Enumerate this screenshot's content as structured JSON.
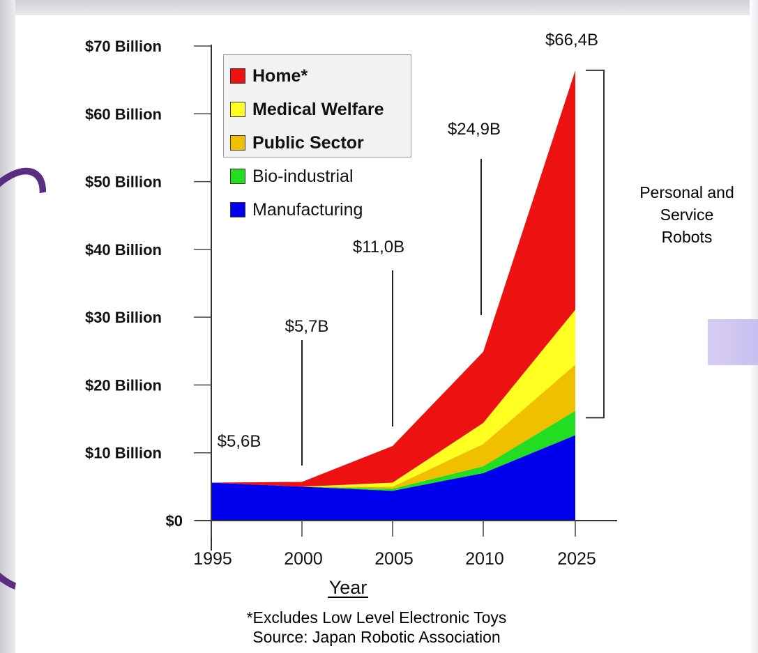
{
  "chart_data": {
    "type": "area",
    "stacked": true,
    "x": [
      "1995",
      "2000",
      "2005",
      "2010",
      "2025"
    ],
    "xlabel": "Year",
    "ylabel": "",
    "ylim": [
      0,
      70
    ],
    "yticks": [
      {
        "value": 0,
        "label": "$0"
      },
      {
        "value": 10,
        "label": "$10 Billion"
      },
      {
        "value": 20,
        "label": "$20 Billion"
      },
      {
        "value": 30,
        "label": "$30 Billion"
      },
      {
        "value": 40,
        "label": "$40 Billion"
      },
      {
        "value": 50,
        "label": "$50 Billion"
      },
      {
        "value": 60,
        "label": "$60 Billion"
      },
      {
        "value": 70,
        "label": "$70 Billion"
      }
    ],
    "series": [
      {
        "name": "Manufacturing",
        "color": "#0000ee",
        "values": [
          5.6,
          5.0,
          4.4,
          7.0,
          12.6
        ]
      },
      {
        "name": "Bio-industrial",
        "color": "#22dd22",
        "values": [
          0.0,
          0.0,
          0.3,
          1.0,
          3.6
        ]
      },
      {
        "name": "Public Sector",
        "color": "#f0c000",
        "values": [
          0.0,
          0.0,
          0.3,
          3.3,
          6.8
        ]
      },
      {
        "name": "Medical Welfare",
        "color": "#ffff22",
        "values": [
          0.0,
          0.0,
          0.6,
          3.1,
          8.1
        ]
      },
      {
        "name": "Home*",
        "color": "#ee1111",
        "values": [
          0.0,
          0.7,
          5.4,
          10.5,
          35.3
        ]
      }
    ],
    "legend": {
      "placement": "top-left",
      "items": [
        {
          "label": "Home*",
          "color": "#ee1111",
          "bold": true,
          "boxed": true
        },
        {
          "label": "Medical Welfare",
          "color": "#ffff22",
          "bold": true,
          "boxed": true
        },
        {
          "label": "Public Sector",
          "color": "#f0c000",
          "bold": true,
          "boxed": true
        },
        {
          "label": "Bio-industrial",
          "color": "#22dd22",
          "bold": false,
          "boxed": false
        },
        {
          "label": "Manufacturing",
          "color": "#0000ee",
          "bold": false,
          "boxed": false
        }
      ]
    },
    "totals": [
      {
        "x": "1995",
        "label": "$5,6B"
      },
      {
        "x": "2000",
        "label": "$5,7B"
      },
      {
        "x": "2005",
        "label": "$11,0B"
      },
      {
        "x": "2010",
        "label": "$24,9B"
      },
      {
        "x": "2025",
        "label": "$66,4B"
      }
    ],
    "annotation": {
      "lines": [
        "Personal and",
        "Service",
        "Robots"
      ],
      "range": [
        16,
        66
      ]
    },
    "notes": [
      "*Excludes Low Level Electronic Toys",
      "Source: Japan Robotic Association"
    ]
  }
}
